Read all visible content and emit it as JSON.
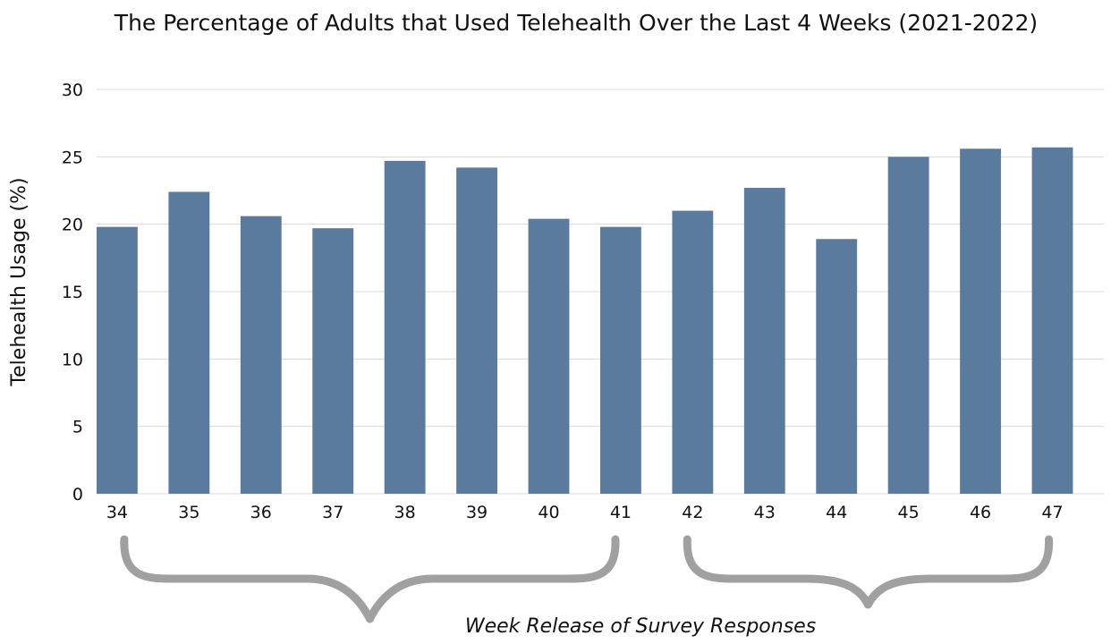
{
  "chart_data": {
    "type": "bar",
    "title": "The Percentage of Adults that Used Telehealth Over the Last 4 Weeks (2021-2022)",
    "xlabel": "Week Release of Survey Responses",
    "ylabel": "Telehealth Usage  (%)",
    "categories": [
      "34",
      "35",
      "36",
      "37",
      "38",
      "39",
      "40",
      "41",
      "42",
      "43",
      "44",
      "45",
      "46",
      "47"
    ],
    "values": [
      19.8,
      22.4,
      20.6,
      19.7,
      24.7,
      24.2,
      20.4,
      19.8,
      21.0,
      22.7,
      18.9,
      25.0,
      25.6,
      25.7
    ],
    "ylim": [
      0,
      30
    ],
    "yticks": [
      0,
      5,
      10,
      15,
      20,
      25,
      30
    ],
    "grid": true,
    "legend": "none",
    "bar_color": "#5a7a9e",
    "brace_color": "#a0a0a0",
    "groups": [
      {
        "from": "34",
        "to": "41"
      },
      {
        "from": "42",
        "to": "47"
      }
    ]
  }
}
